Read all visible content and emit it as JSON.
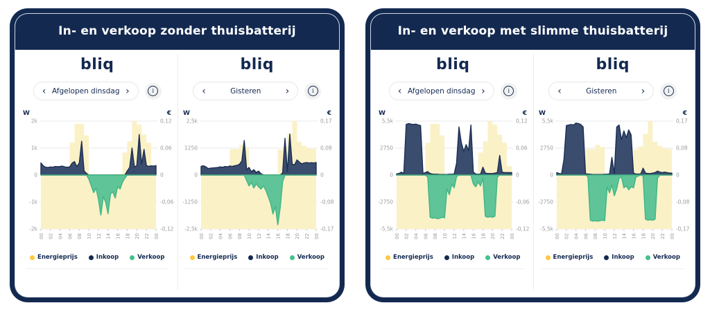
{
  "colors": {
    "navy": "#132950",
    "price_fill": "#FAF1C7",
    "inkoop_fill": "#3A4D6E",
    "inkoop_stroke": "#1C2E52",
    "verkoop_fill": "#5FC598",
    "verkoop_stroke": "#45B786",
    "legend_yellow": "#FFC93E",
    "legend_navy": "#132950",
    "legend_green": "#43C18D",
    "grid": "#EAEAEA",
    "axis_text": "#9B9B9B",
    "tick_mark": "#CFCFCF"
  },
  "shared": {
    "logo_text": "bliq",
    "nav_prev": "‹",
    "nav_next": "›",
    "info_glyph": "i",
    "axis_w": "W",
    "axis_eur": "€"
  },
  "legend_items": [
    {
      "label": "Energieprijs",
      "color": "#FFC93E"
    },
    {
      "label": "Inkoop",
      "color": "#132950"
    },
    {
      "label": "Verkoop",
      "color": "#43C18D"
    }
  ],
  "panels": [
    {
      "title": "In- en verkoop zonder thuisbatterij"
    },
    {
      "title": "In- en verkoop met slimme thuisbatterij"
    }
  ],
  "chart_data": [
    {
      "type": "area",
      "nav_label": "Afgelopen dinsdag",
      "w_axis": {
        "unit": "W",
        "max": 2000,
        "ticks": [
          "2k",
          "1k",
          "0",
          "-1k",
          "-2k"
        ]
      },
      "eur_axis": {
        "unit": "€",
        "max": 0.12,
        "ticks": [
          "0,12",
          "0,06",
          "0",
          "-0,06",
          "-0,12"
        ]
      },
      "x_ticks": [
        "00",
        "02",
        "04",
        "06",
        "08",
        "10",
        "12",
        "14",
        "16",
        "18",
        "20",
        "22",
        "00"
      ],
      "x_hours_step_series": 0.5,
      "series": {
        "energieprijs_eur_per_kwh_hourly": [
          0.004,
          0.003,
          0.002,
          0.002,
          0.003,
          0.004,
          0.072,
          0.114,
          0.114,
          0.088,
          0.002,
          0.002,
          0.001,
          0.001,
          0.001,
          0.002,
          0.003,
          0.05,
          0.075,
          0.12,
          0.112,
          0.09,
          0.072,
          0.02
        ],
        "inkoop_w": [
          450,
          340,
          290,
          280,
          300,
          290,
          320,
          310,
          320,
          330,
          300,
          290,
          300,
          440,
          500,
          310,
          450,
          1250,
          150,
          60,
          0,
          0,
          0,
          0,
          0,
          0,
          0,
          0,
          0,
          0,
          0,
          0,
          0,
          0,
          0,
          0,
          150,
          280,
          1000,
          300,
          350,
          1500,
          400,
          950,
          350,
          320,
          340,
          330,
          350
        ],
        "verkoop_w": [
          0,
          0,
          0,
          0,
          0,
          0,
          0,
          0,
          0,
          0,
          0,
          0,
          0,
          0,
          0,
          0,
          0,
          0,
          0,
          0,
          -150,
          -400,
          -650,
          -480,
          -900,
          -1480,
          -800,
          -1000,
          -1430,
          -700,
          -620,
          -850,
          -420,
          -520,
          -260,
          -120,
          0,
          0,
          0,
          0,
          0,
          0,
          0,
          0,
          0,
          0,
          0,
          0,
          0
        ]
      }
    },
    {
      "type": "area",
      "nav_label": "Gisteren",
      "w_axis": {
        "unit": "W",
        "max": 2500,
        "ticks": [
          "2,5k",
          "1250",
          "0",
          "-1250",
          "-2,5k"
        ]
      },
      "eur_axis": {
        "unit": "€",
        "max": 0.17,
        "ticks": [
          "0,17",
          "0,08",
          "0",
          "-0,08",
          "-0,17"
        ]
      },
      "x_ticks": [
        "00",
        "02",
        "04",
        "06",
        "08",
        "10",
        "12",
        "14",
        "16",
        "18",
        "20",
        "22",
        "00"
      ],
      "x_hours_step_series": 0.5,
      "series": {
        "energieprijs_eur_per_kwh_hourly": [
          0.003,
          0.002,
          0.002,
          0.002,
          0.003,
          0.004,
          0.082,
          0.082,
          0.095,
          0.088,
          0.003,
          0.002,
          0.002,
          0.002,
          0.003,
          0.003,
          0.08,
          0.09,
          0.13,
          0.17,
          0.105,
          0.092,
          0.085,
          0.082
        ],
        "inkoop_w": [
          400,
          430,
          380,
          300,
          320,
          330,
          340,
          350,
          380,
          360,
          400,
          380,
          420,
          400,
          430,
          450,
          500,
          650,
          1600,
          250,
          350,
          150,
          250,
          120,
          180,
          60,
          0,
          0,
          0,
          0,
          0,
          0,
          0,
          0,
          100,
          1700,
          150,
          1900,
          500,
          480,
          700,
          600,
          520,
          560,
          580,
          560,
          570,
          560,
          580
        ],
        "verkoop_w": [
          0,
          0,
          0,
          0,
          0,
          0,
          0,
          0,
          0,
          0,
          0,
          0,
          0,
          0,
          0,
          0,
          0,
          0,
          0,
          -250,
          -500,
          -350,
          -600,
          -400,
          -550,
          -650,
          -500,
          -700,
          -1000,
          -1300,
          -1800,
          -1450,
          -2300,
          -1500,
          -300,
          0,
          0,
          0,
          0,
          0,
          0,
          0,
          0,
          0,
          0,
          0,
          0,
          0,
          0
        ]
      }
    },
    {
      "type": "area",
      "nav_label": "Afgelopen dinsdag",
      "w_axis": {
        "unit": "W",
        "max": 5500,
        "ticks": [
          "5,5k",
          "2750",
          "0",
          "-2750",
          "-5,5k"
        ]
      },
      "eur_axis": {
        "unit": "€",
        "max": 0.12,
        "ticks": [
          "0,12",
          "0,06",
          "0",
          "-0,06",
          "-0,12"
        ]
      },
      "x_ticks": [
        "00",
        "02",
        "04",
        "06",
        "08",
        "10",
        "12",
        "14",
        "16",
        "18",
        "20",
        "22",
        "00"
      ],
      "x_hours_step_series": 0.5,
      "series": {
        "energieprijs_eur_per_kwh_hourly": [
          0.004,
          0.003,
          0.002,
          0.002,
          0.003,
          0.004,
          0.072,
          0.114,
          0.114,
          0.088,
          0.002,
          0.002,
          0.001,
          0.001,
          0.001,
          0.002,
          0.003,
          0.05,
          0.075,
          0.12,
          0.112,
          0.09,
          0.072,
          0.02
        ],
        "inkoop_w": [
          120,
          150,
          300,
          150,
          5150,
          5250,
          5200,
          5150,
          5200,
          5100,
          5050,
          150,
          250,
          350,
          150,
          100,
          80,
          80,
          60,
          60,
          60,
          60,
          80,
          80,
          100,
          1200,
          4900,
          3300,
          2400,
          3100,
          2500,
          5100,
          300,
          100,
          80,
          80,
          800,
          200,
          150,
          150,
          150,
          200,
          250,
          2000,
          300,
          250,
          250,
          250,
          250
        ],
        "verkoop_w": [
          0,
          0,
          0,
          0,
          0,
          0,
          0,
          0,
          0,
          0,
          0,
          0,
          0,
          -200,
          -4300,
          -4400,
          -4350,
          -4450,
          -4400,
          -4300,
          -4350,
          -1400,
          -2000,
          -900,
          -1300,
          -150,
          0,
          0,
          0,
          0,
          0,
          0,
          -900,
          -1200,
          -700,
          -1100,
          -300,
          -4200,
          -4300,
          -4250,
          -4300,
          -4200,
          -200,
          0,
          0,
          0,
          0,
          0,
          0
        ]
      }
    },
    {
      "type": "area",
      "nav_label": "Gisteren",
      "w_axis": {
        "unit": "W",
        "max": 5500,
        "ticks": [
          "5,5k",
          "2750",
          "0",
          "-2750",
          "-5,5k"
        ]
      },
      "eur_axis": {
        "unit": "€",
        "max": 0.17,
        "ticks": [
          "0,17",
          "0,08",
          "0",
          "-0,08",
          "-0,17"
        ]
      },
      "x_ticks": [
        "00",
        "02",
        "04",
        "06",
        "08",
        "10",
        "12",
        "14",
        "16",
        "18",
        "20",
        "22",
        "00"
      ],
      "x_hours_step_series": 0.5,
      "series": {
        "energieprijs_eur_per_kwh_hourly": [
          0.003,
          0.002,
          0.002,
          0.002,
          0.003,
          0.004,
          0.082,
          0.082,
          0.095,
          0.088,
          0.003,
          0.002,
          0.002,
          0.002,
          0.003,
          0.003,
          0.08,
          0.09,
          0.13,
          0.17,
          0.105,
          0.092,
          0.085,
          0.082
        ],
        "inkoop_w": [
          250,
          150,
          120,
          1600,
          5050,
          5100,
          5150,
          5100,
          5300,
          5250,
          5150,
          4900,
          120,
          100,
          80,
          60,
          60,
          60,
          60,
          60,
          80,
          80,
          100,
          1800,
          150,
          4900,
          5100,
          3600,
          4500,
          3800,
          4600,
          4100,
          200,
          100,
          100,
          100,
          700,
          200,
          150,
          150,
          200,
          250,
          400,
          300,
          250,
          300,
          250,
          200,
          200
        ],
        "verkoop_w": [
          0,
          0,
          0,
          0,
          0,
          0,
          0,
          0,
          0,
          0,
          0,
          0,
          0,
          -150,
          -4600,
          -4700,
          -4650,
          -4700,
          -4650,
          -4600,
          -4650,
          -1200,
          -1800,
          -1000,
          -2100,
          -1400,
          -300,
          -200,
          -1300,
          -1100,
          -1500,
          -1200,
          -1300,
          -200,
          -100,
          0,
          -100,
          -4500,
          -4600,
          -4550,
          -4600,
          -4500,
          -300,
          0,
          0,
          0,
          0,
          0,
          0
        ]
      }
    }
  ]
}
